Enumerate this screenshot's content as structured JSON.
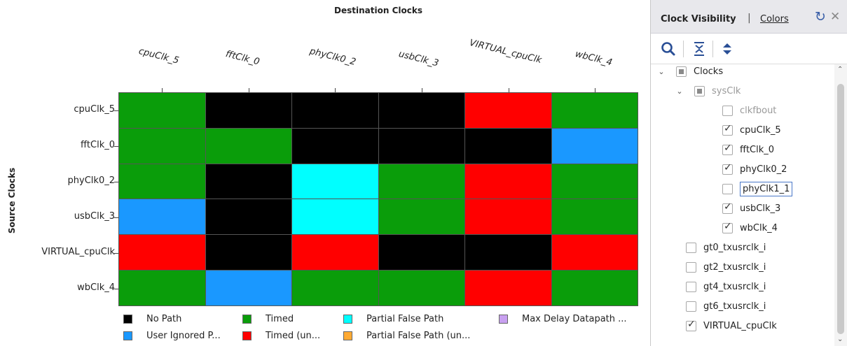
{
  "matrix": {
    "title": "Destination Clocks",
    "y_title": "Source Clocks",
    "columns": [
      "cpuClk_5",
      "fftClk_0",
      "phyClk0_2",
      "usbClk_3",
      "VIRTUAL_cpuClk",
      "wbClk_4"
    ],
    "rows": [
      "cpuClk_5",
      "fftClk_0",
      "phyClk0_2",
      "usbClk_3",
      "VIRTUAL_cpuClk",
      "wbClk_4"
    ],
    "cells": [
      [
        "timed",
        "nopath",
        "nopath",
        "nopath",
        "timed_unsafe",
        "timed"
      ],
      [
        "timed",
        "timed",
        "nopath",
        "nopath",
        "nopath",
        "user_ignored"
      ],
      [
        "timed",
        "nopath",
        "partial_false",
        "timed",
        "timed_unsafe",
        "timed"
      ],
      [
        "user_ignored",
        "nopath",
        "partial_false",
        "timed",
        "timed_unsafe",
        "timed"
      ],
      [
        "timed_unsafe",
        "nopath",
        "timed_unsafe",
        "nopath",
        "nopath",
        "timed_unsafe"
      ],
      [
        "timed",
        "user_ignored",
        "timed",
        "timed",
        "timed_unsafe",
        "timed"
      ]
    ],
    "colors": {
      "nopath": "#000000",
      "timed": "#0a9d0a",
      "partial_false": "#00ffff",
      "max_delay": "#c8a0f0",
      "user_ignored": "#1a98ff",
      "timed_unsafe": "#ff0000",
      "partial_false_unsafe": "#ffaa33"
    },
    "legend": [
      {
        "key": "nopath",
        "label": "No Path"
      },
      {
        "key": "timed",
        "label": "Timed"
      },
      {
        "key": "partial_false",
        "label": "Partial False Path"
      },
      {
        "key": "max_delay",
        "label": "Max Delay Datapath ..."
      },
      {
        "key": "user_ignored",
        "label": "User Ignored P..."
      },
      {
        "key": "timed_unsafe",
        "label": "Timed (un..."
      },
      {
        "key": "partial_false_unsafe",
        "label": "Partial False Path (un..."
      }
    ]
  },
  "panel": {
    "tab_active": "Clock Visibility",
    "tab_sep": "|",
    "tab_colors": "Colors",
    "tree": [
      {
        "label": "Clocks",
        "level": 0,
        "twisty": "expanded",
        "state": "partial",
        "gray": false
      },
      {
        "label": "sysClk",
        "level": 1,
        "twisty": "expanded",
        "state": "partial",
        "gray": true
      },
      {
        "label": "clkfbout",
        "level": 2,
        "state": "unchecked",
        "gray": true
      },
      {
        "label": "cpuClk_5",
        "level": 2,
        "state": "checked",
        "gray": false
      },
      {
        "label": "fftClk_0",
        "level": 2,
        "state": "checked",
        "gray": false
      },
      {
        "label": "phyClk0_2",
        "level": 2,
        "state": "checked",
        "gray": false
      },
      {
        "label": "phyClk1_1",
        "level": 2,
        "state": "unchecked",
        "gray": false,
        "editing": true
      },
      {
        "label": "usbClk_3",
        "level": 2,
        "state": "checked",
        "gray": false
      },
      {
        "label": "wbClk_4",
        "level": 2,
        "state": "checked",
        "gray": false
      },
      {
        "label": "gt0_txusrclk_i",
        "level": 1,
        "state": "unchecked",
        "gray": false
      },
      {
        "label": "gt2_txusrclk_i",
        "level": 1,
        "state": "unchecked",
        "gray": false
      },
      {
        "label": "gt4_txusrclk_i",
        "level": 1,
        "state": "unchecked",
        "gray": false
      },
      {
        "label": "gt6_txusrclk_i",
        "level": 1,
        "state": "unchecked",
        "gray": false
      },
      {
        "label": "VIRTUAL_cpuClk",
        "level": 1,
        "state": "checked",
        "gray": false
      }
    ]
  }
}
